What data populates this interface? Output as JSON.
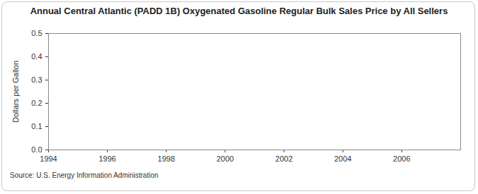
{
  "chart_data": {
    "type": "line",
    "title": "Annual Central Atlantic (PADD 1B) Oxygenated Gasoline Regular Bulk Sales Price by All Sellers",
    "y_label": "Dollars per Gallon",
    "caption": "Source: U.S. Energy Information Administration",
    "x": [],
    "values": [],
    "xlim": [
      1994,
      2008
    ],
    "xticks": [
      1994,
      1996,
      1998,
      2000,
      2002,
      2004,
      2006
    ],
    "ylim": [
      0,
      0.5
    ],
    "yticks": [
      {
        "value": 0,
        "label": "0.0"
      },
      {
        "value": 0.1,
        "label": "0.1"
      },
      {
        "value": 0.2,
        "label": "0.2"
      },
      {
        "value": 0.3,
        "label": "0.3"
      },
      {
        "value": 0.4,
        "label": "0.4"
      },
      {
        "value": 0.5,
        "label": "0.5"
      }
    ],
    "grid": false
  }
}
